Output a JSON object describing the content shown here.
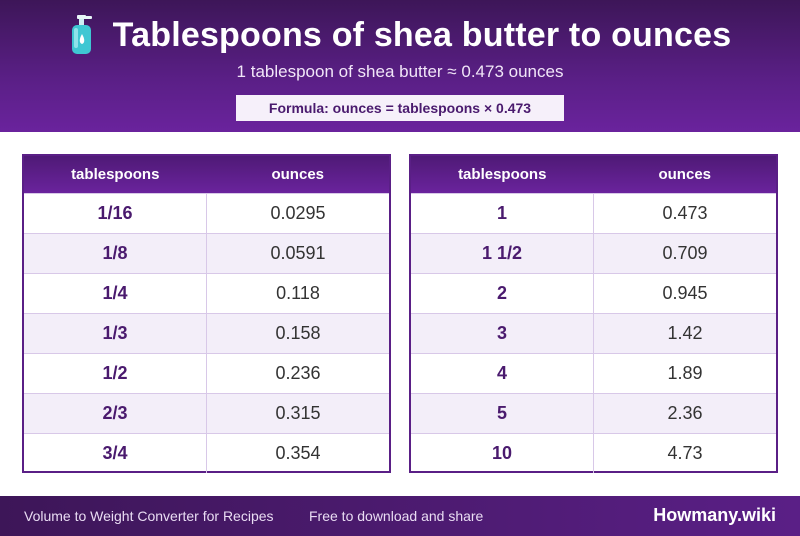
{
  "header": {
    "icon": "lotion-bottle-icon",
    "title": "Tablespoons of shea butter to ounces",
    "subtitle": "1 tablespoon of shea butter ≈ 0.473 ounces",
    "formula": "Formula: ounces = tablespoons × 0.473"
  },
  "tables": [
    {
      "columns": [
        "tablespoons",
        "ounces"
      ],
      "rows": [
        [
          "1/16",
          "0.0295"
        ],
        [
          "1/8",
          "0.0591"
        ],
        [
          "1/4",
          "0.118"
        ],
        [
          "1/3",
          "0.158"
        ],
        [
          "1/2",
          "0.236"
        ],
        [
          "2/3",
          "0.315"
        ],
        [
          "3/4",
          "0.354"
        ]
      ]
    },
    {
      "columns": [
        "tablespoons",
        "ounces"
      ],
      "rows": [
        [
          "1",
          "0.473"
        ],
        [
          "1 1/2",
          "0.709"
        ],
        [
          "2",
          "0.945"
        ],
        [
          "3",
          "1.42"
        ],
        [
          "4",
          "1.89"
        ],
        [
          "5",
          "2.36"
        ],
        [
          "10",
          "4.73"
        ]
      ]
    }
  ],
  "footer": {
    "left": "Volume to Weight Converter for Recipes",
    "middle": "Free to download and share",
    "brand": "Howmany.wiki"
  },
  "colors": {
    "header_purple": "#5a1f86",
    "accent_text": "#4a1a6e",
    "row_alt": "#f3eef9"
  }
}
